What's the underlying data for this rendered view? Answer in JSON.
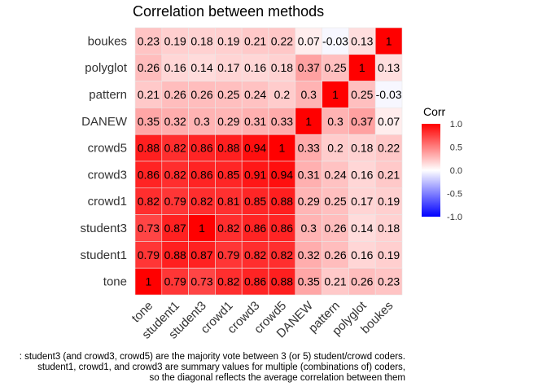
{
  "title": "Correlation between methods",
  "captions": [
    ": student3 (and crowd3, crowd5) are the majority vote between 3 (or 5) student/crowd coders.",
    "student1, crowd1, and crowd3 are summary values for multiple (combinations of) coders,",
    "so the diagonal reflects the average correlation between them"
  ],
  "legend": {
    "title": "Corr",
    "ticks": [
      "1.0",
      "0.5",
      "0.0",
      "-0.5",
      "-1.0"
    ]
  },
  "colors": {
    "high": "#ff0000",
    "mid": "#ffffff",
    "low": "#0000ff",
    "grid": "#e8e8e8"
  },
  "chart_data": {
    "type": "heatmap",
    "title": "Correlation between methods",
    "x_categories": [
      "tone",
      "student1",
      "student3",
      "crowd1",
      "crowd3",
      "crowd5",
      "DANEW",
      "pattern",
      "polyglot",
      "boukes"
    ],
    "y_categories": [
      "boukes",
      "polyglot",
      "pattern",
      "DANEW",
      "crowd5",
      "crowd3",
      "crowd1",
      "student3",
      "student1",
      "tone"
    ],
    "value_range": [
      -1,
      1
    ],
    "values": [
      [
        "0.23",
        "0.19",
        "0.18",
        "0.19",
        "0.21",
        "0.22",
        "0.07",
        "-0.03",
        "0.13",
        "1"
      ],
      [
        "0.26",
        "0.16",
        "0.14",
        "0.17",
        "0.16",
        "0.18",
        "0.37",
        "0.25",
        "1",
        "0.13"
      ],
      [
        "0.21",
        "0.26",
        "0.26",
        "0.25",
        "0.24",
        "0.2",
        "0.3",
        "1",
        "0.25",
        "-0.03"
      ],
      [
        "0.35",
        "0.32",
        "0.3",
        "0.29",
        "0.31",
        "0.33",
        "1",
        "0.3",
        "0.37",
        "0.07"
      ],
      [
        "0.88",
        "0.82",
        "0.86",
        "0.88",
        "0.94",
        "1",
        "0.33",
        "0.2",
        "0.18",
        "0.22"
      ],
      [
        "0.86",
        "0.82",
        "0.86",
        "0.85",
        "0.91",
        "0.94",
        "0.31",
        "0.24",
        "0.16",
        "0.21"
      ],
      [
        "0.82",
        "0.79",
        "0.82",
        "0.81",
        "0.85",
        "0.88",
        "0.29",
        "0.25",
        "0.17",
        "0.19"
      ],
      [
        "0.73",
        "0.87",
        "1",
        "0.82",
        "0.86",
        "0.86",
        "0.3",
        "0.26",
        "0.14",
        "0.18"
      ],
      [
        "0.79",
        "0.88",
        "0.87",
        "0.79",
        "0.82",
        "0.82",
        "0.32",
        "0.26",
        "0.16",
        "0.19"
      ],
      [
        "1",
        "0.79",
        "0.73",
        "0.82",
        "0.86",
        "0.88",
        "0.35",
        "0.21",
        "0.26",
        "0.23"
      ]
    ],
    "legend_title": "Corr"
  }
}
